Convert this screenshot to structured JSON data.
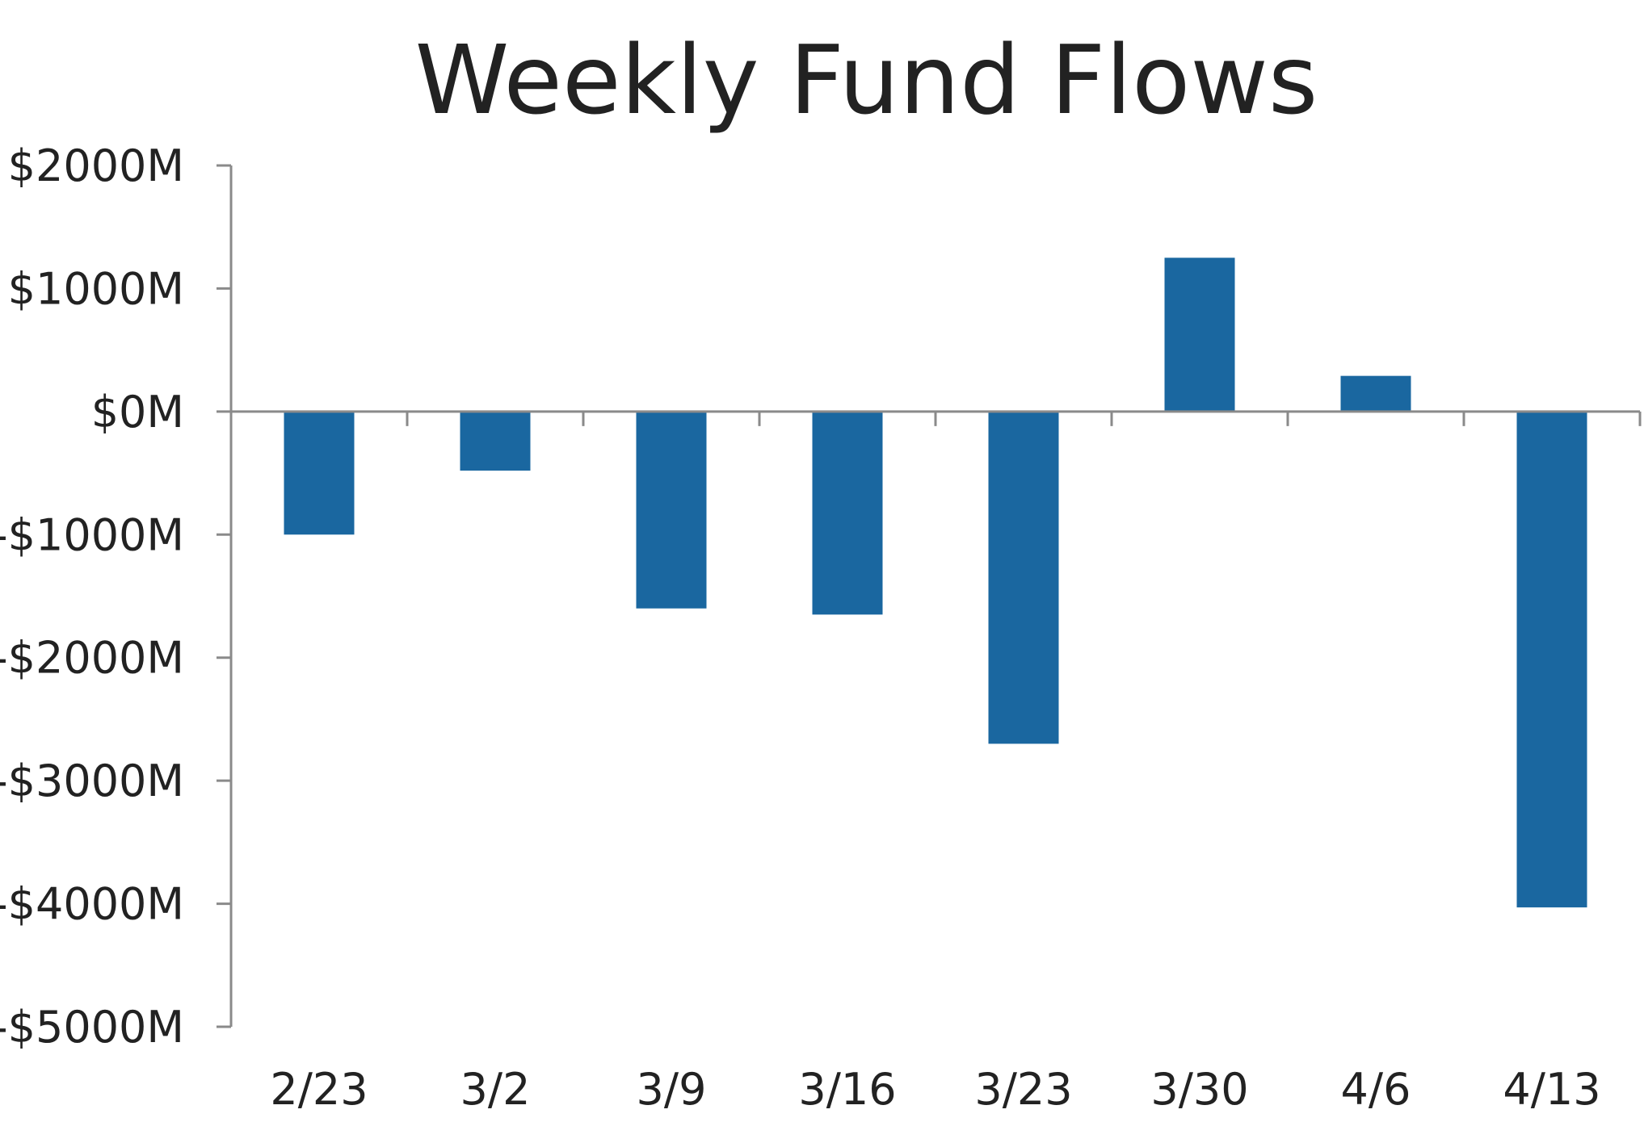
{
  "chart_data": {
    "type": "bar",
    "title": "Weekly Fund Flows",
    "xlabel": "",
    "ylabel": "",
    "categories": [
      "2/23",
      "3/2",
      "3/9",
      "3/16",
      "3/23",
      "3/30",
      "4/6",
      "4/13"
    ],
    "values": [
      -1000,
      -480,
      -1600,
      -1650,
      -2700,
      1250,
      290,
      -4030
    ],
    "y_ticks": [
      2000,
      1000,
      0,
      -1000,
      -2000,
      -3000,
      -4000,
      -5000
    ],
    "y_tick_labels": [
      "$2000M",
      "$1000M",
      "$0M",
      "-$1000M",
      "-$2000M",
      "-$3000M",
      "-$4000M",
      "-$5000M"
    ],
    "ylim": [
      -5000,
      2000
    ],
    "grid": false,
    "legend": "none",
    "bar_color": "#1a67a0",
    "axis_color": "#8a8a8a"
  }
}
